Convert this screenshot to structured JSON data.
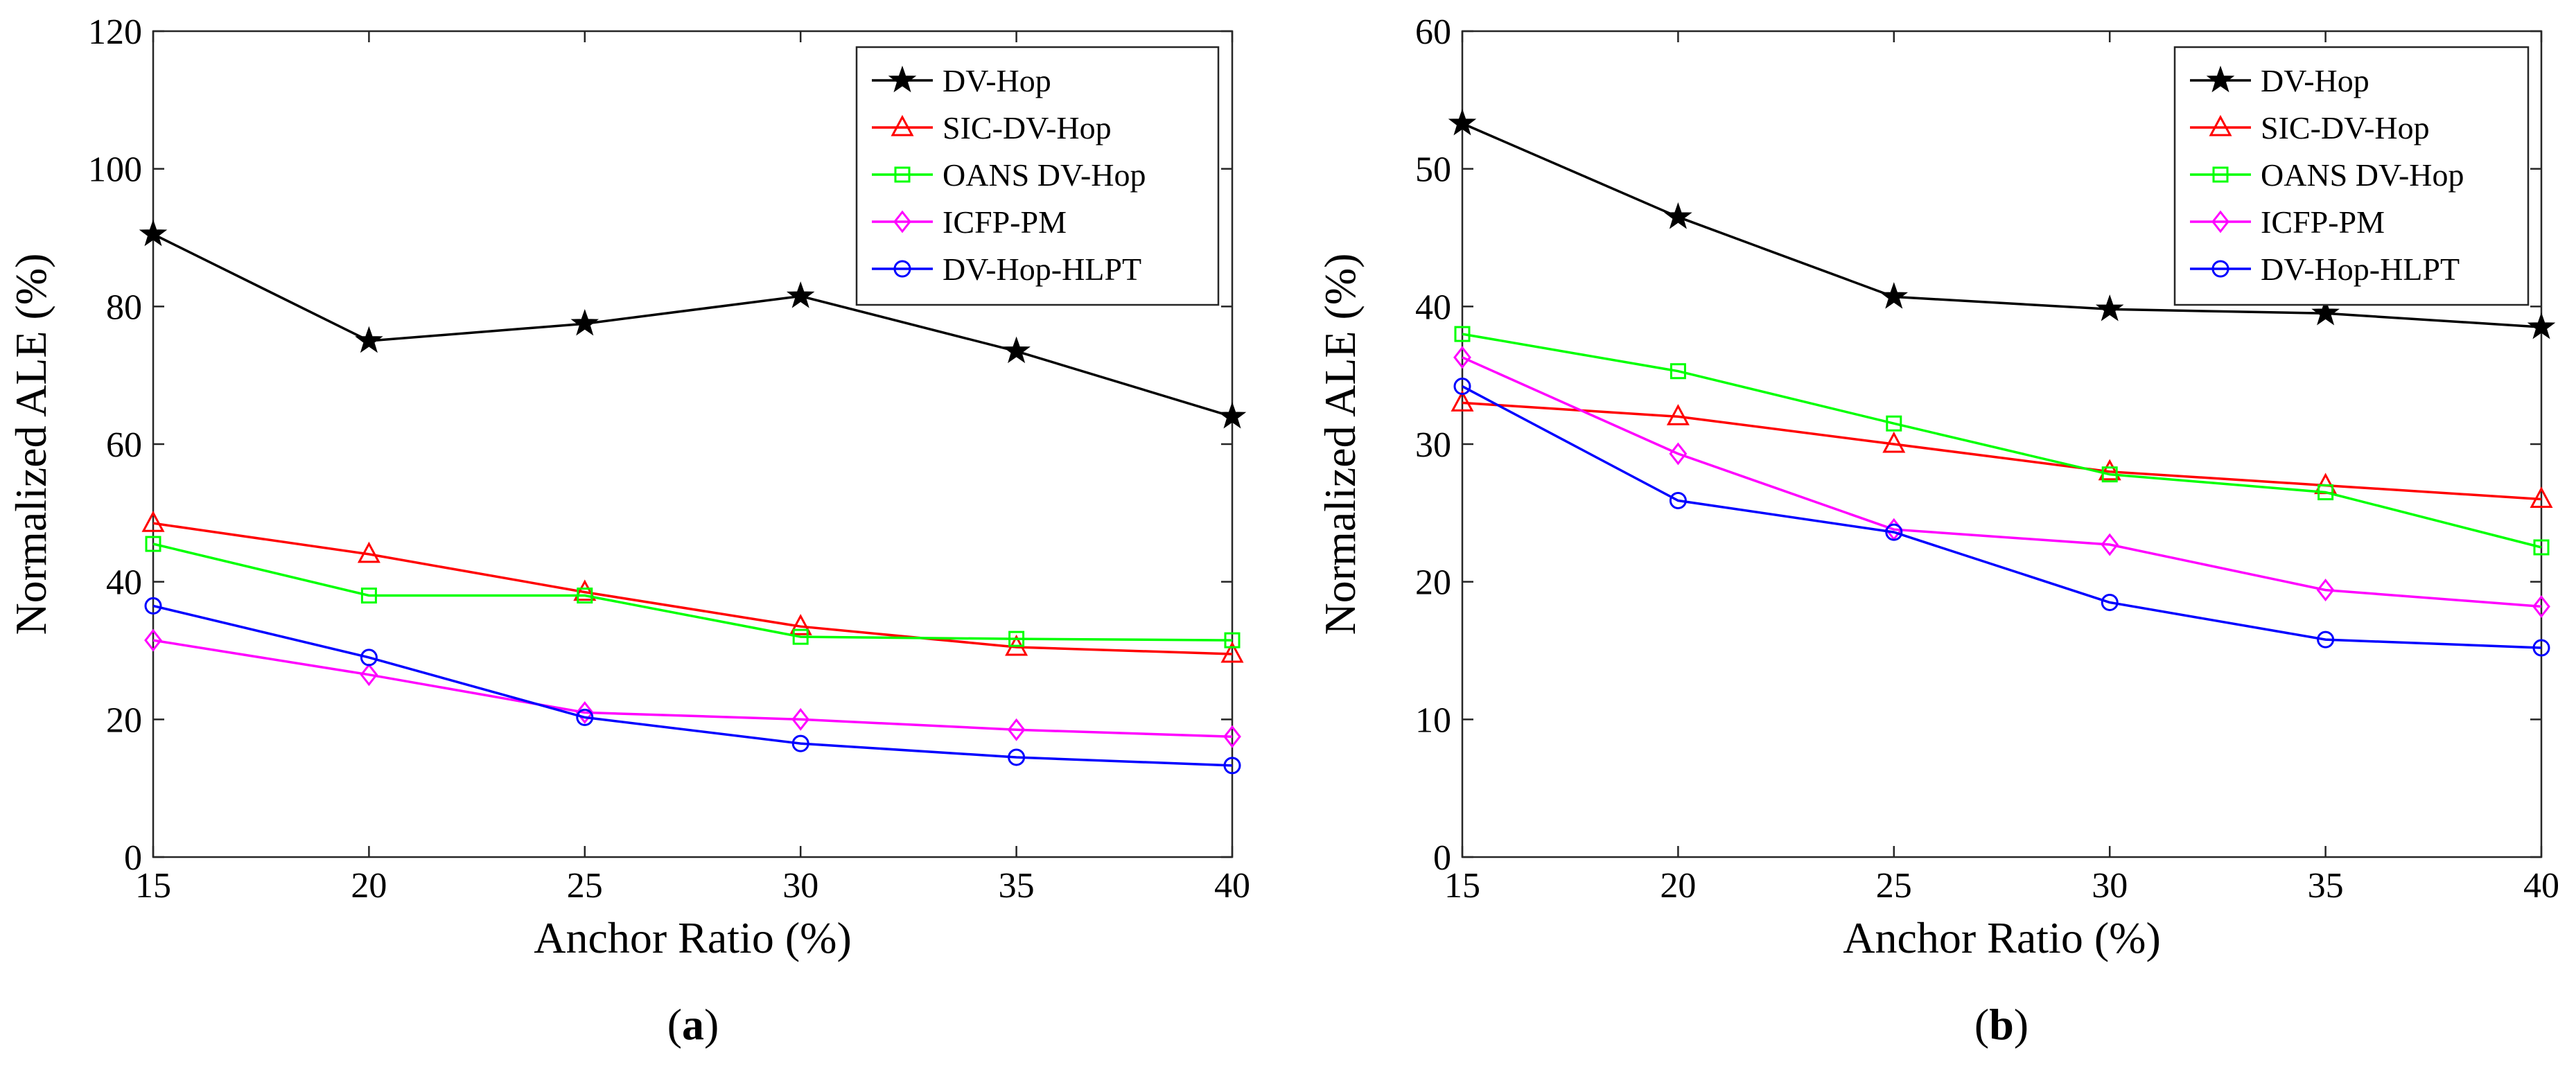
{
  "chart_data": [
    {
      "type": "line",
      "caption_letter": "a",
      "title": "",
      "xlabel": "Anchor Ratio (%)",
      "ylabel": "Normalized ALE (%)",
      "x": [
        15,
        20,
        25,
        30,
        35,
        40
      ],
      "xlim": [
        15,
        40
      ],
      "ylim": [
        0,
        120
      ],
      "xticks": [
        15,
        20,
        25,
        30,
        35,
        40
      ],
      "yticks": [
        0,
        20,
        40,
        60,
        80,
        100,
        120
      ],
      "grid": false,
      "legend_position": "top-right",
      "series": [
        {
          "name": "DV-Hop",
          "color": "#000000",
          "marker": "star",
          "values": [
            90.5,
            75,
            77.5,
            81.5,
            73.5,
            64
          ]
        },
        {
          "name": "SIC-DV-Hop",
          "color": "#ff0000",
          "marker": "triangle",
          "values": [
            48.5,
            44,
            38.5,
            33.5,
            30.5,
            29.5
          ]
        },
        {
          "name": "OANS DV-Hop",
          "color": "#00ff00",
          "marker": "square",
          "values": [
            45.5,
            38,
            38,
            32,
            31.7,
            31.5
          ]
        },
        {
          "name": "ICFP-PM",
          "color": "#ff00ff",
          "marker": "diamond",
          "values": [
            31.5,
            26.5,
            21,
            20,
            18.5,
            17.5
          ]
        },
        {
          "name": "DV-Hop-HLPT",
          "color": "#0000ff",
          "marker": "circle",
          "values": [
            36.5,
            29,
            20.3,
            16.5,
            14.5,
            13.3
          ]
        }
      ]
    },
    {
      "type": "line",
      "caption_letter": "b",
      "title": "",
      "xlabel": "Anchor Ratio (%)",
      "ylabel": "Normalized ALE (%)",
      "x": [
        15,
        20,
        25,
        30,
        35,
        40
      ],
      "xlim": [
        15,
        40
      ],
      "ylim": [
        0,
        60
      ],
      "xticks": [
        15,
        20,
        25,
        30,
        35,
        40
      ],
      "yticks": [
        0,
        10,
        20,
        30,
        40,
        50,
        60
      ],
      "grid": false,
      "legend_position": "top-right",
      "series": [
        {
          "name": "DV-Hop",
          "color": "#000000",
          "marker": "star",
          "values": [
            53.3,
            46.5,
            40.7,
            39.8,
            39.5,
            38.5
          ]
        },
        {
          "name": "SIC-DV-Hop",
          "color": "#ff0000",
          "marker": "triangle",
          "values": [
            33,
            32,
            30,
            28,
            27,
            26
          ]
        },
        {
          "name": "OANS DV-Hop",
          "color": "#00ff00",
          "marker": "square",
          "values": [
            38,
            35.3,
            31.5,
            27.8,
            26.5,
            22.5
          ]
        },
        {
          "name": "ICFP-PM",
          "color": "#ff00ff",
          "marker": "diamond",
          "values": [
            36.3,
            29.3,
            23.8,
            22.7,
            19.4,
            18.2
          ]
        },
        {
          "name": "DV-Hop-HLPT",
          "color": "#0000ff",
          "marker": "circle",
          "values": [
            34.2,
            25.9,
            23.6,
            18.5,
            15.8,
            15.2
          ]
        }
      ]
    }
  ]
}
